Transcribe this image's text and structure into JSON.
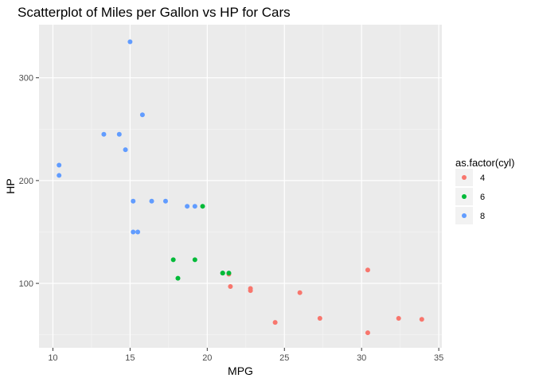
{
  "chart_data": {
    "type": "scatter",
    "title": "Scatterplot of Miles per Gallon vs HP for Cars",
    "xlabel": "MPG",
    "ylabel": "HP",
    "xlim": [
      9.1,
      35.2
    ],
    "ylim": [
      37.35,
      351.65
    ],
    "x_ticks": [
      10,
      15,
      20,
      25,
      30,
      35
    ],
    "y_ticks": [
      100,
      200,
      300
    ],
    "grid": true,
    "legend": {
      "title": "as.factor(cyl)",
      "placement": "right",
      "entries": [
        {
          "label": "4",
          "color": "#F8766D"
        },
        {
          "label": "6",
          "color": "#00BA38"
        },
        {
          "label": "8",
          "color": "#619CFF"
        }
      ]
    },
    "series": [
      {
        "name": "4",
        "color": "#F8766D",
        "points": [
          [
            22.8,
            93
          ],
          [
            24.4,
            62
          ],
          [
            22.8,
            95
          ],
          [
            32.4,
            66
          ],
          [
            30.4,
            52
          ],
          [
            33.9,
            65
          ],
          [
            21.5,
            97
          ],
          [
            27.3,
            66
          ],
          [
            26.0,
            91
          ],
          [
            30.4,
            113
          ],
          [
            21.4,
            109
          ]
        ]
      },
      {
        "name": "6",
        "color": "#00BA38",
        "points": [
          [
            21.0,
            110
          ],
          [
            21.0,
            110
          ],
          [
            21.4,
            110
          ],
          [
            18.1,
            105
          ],
          [
            19.2,
            123
          ],
          [
            17.8,
            123
          ],
          [
            19.7,
            175
          ]
        ]
      },
      {
        "name": "8",
        "color": "#619CFF",
        "points": [
          [
            18.7,
            175
          ],
          [
            14.3,
            245
          ],
          [
            16.4,
            180
          ],
          [
            17.3,
            180
          ],
          [
            15.2,
            180
          ],
          [
            10.4,
            205
          ],
          [
            10.4,
            215
          ],
          [
            14.7,
            230
          ],
          [
            15.5,
            150
          ],
          [
            15.2,
            150
          ],
          [
            13.3,
            245
          ],
          [
            19.2,
            175
          ],
          [
            15.8,
            264
          ],
          [
            15.0,
            335
          ]
        ]
      }
    ]
  }
}
